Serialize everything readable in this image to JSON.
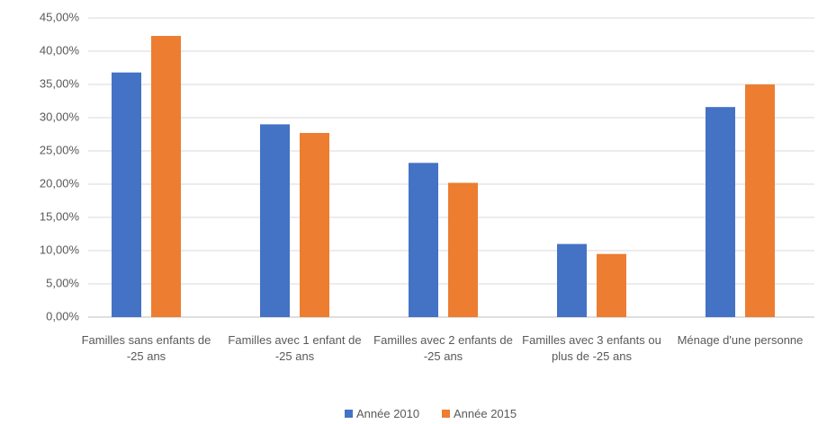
{
  "chart_data": {
    "type": "bar",
    "categories": [
      "Familles sans enfants de -25 ans",
      "Familles avec 1 enfant de -25 ans",
      "Familles avec 2 enfants de -25 ans",
      "Familles avec 3 enfants ou plus de -25 ans",
      "Ménage d'une personne"
    ],
    "series": [
      {
        "name": "Année 2010",
        "color": "#4472c4",
        "values": [
          36.8,
          29.0,
          23.2,
          11.0,
          31.6
        ]
      },
      {
        "name": "Année 2015",
        "color": "#ed7d31",
        "values": [
          42.3,
          27.7,
          20.2,
          9.5,
          35.0
        ]
      }
    ],
    "ylim": [
      0,
      45
    ],
    "yticks": [
      {
        "value": 0,
        "label": "0,00%"
      },
      {
        "value": 5,
        "label": "5,00%"
      },
      {
        "value": 10,
        "label": "10,00%"
      },
      {
        "value": 15,
        "label": "15,00%"
      },
      {
        "value": 20,
        "label": "20,00%"
      },
      {
        "value": 25,
        "label": "25,00%"
      },
      {
        "value": 30,
        "label": "30,00%"
      },
      {
        "value": 35,
        "label": "35,00%"
      },
      {
        "value": 40,
        "label": "40,00%"
      },
      {
        "value": 45,
        "label": "45,00%"
      }
    ],
    "grid": true,
    "legend": "bottom"
  }
}
